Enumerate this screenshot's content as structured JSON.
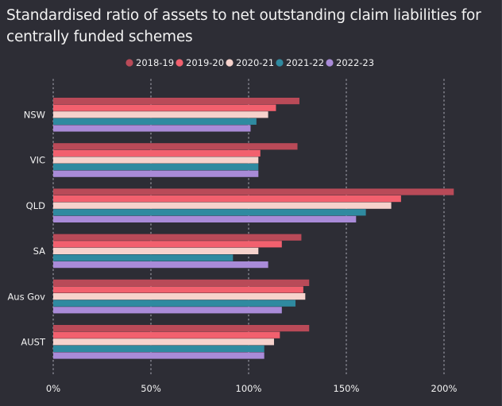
{
  "chart_data": {
    "type": "bar",
    "orientation": "horizontal",
    "title": "Standardised ratio of assets to net outstanding claim liabilities for centrally funded schemes",
    "categories": [
      "NSW",
      "VIC",
      "QLD",
      "SA",
      "Aus Gov",
      "AUST"
    ],
    "series": [
      {
        "name": "2018-19",
        "color": "#b94a58",
        "values": [
          126,
          125,
          205,
          127,
          131,
          131
        ]
      },
      {
        "name": "2019-20",
        "color": "#f2606e",
        "values": [
          114,
          106,
          178,
          117,
          128,
          116
        ]
      },
      {
        "name": "2020-21",
        "color": "#f6d2cc",
        "values": [
          110,
          105,
          173,
          105,
          129,
          113
        ]
      },
      {
        "name": "2021-22",
        "color": "#2f8aa0",
        "values": [
          104,
          105,
          160,
          92,
          124,
          108
        ]
      },
      {
        "name": "2022-23",
        "color": "#a98bd8",
        "values": [
          101,
          105,
          155,
          110,
          117,
          108
        ]
      }
    ],
    "xlim": [
      0,
      220
    ],
    "xticks": [
      0,
      50,
      100,
      150,
      200
    ],
    "xtick_labels": [
      "0%",
      "50%",
      "100%",
      "150%",
      "200%"
    ],
    "grid": true,
    "legend_position": "top-center",
    "xlabel": "",
    "ylabel": ""
  },
  "colors": {
    "background": "#2d2d35",
    "text": "#f2f2f2",
    "gridline": "#8c8c96"
  }
}
